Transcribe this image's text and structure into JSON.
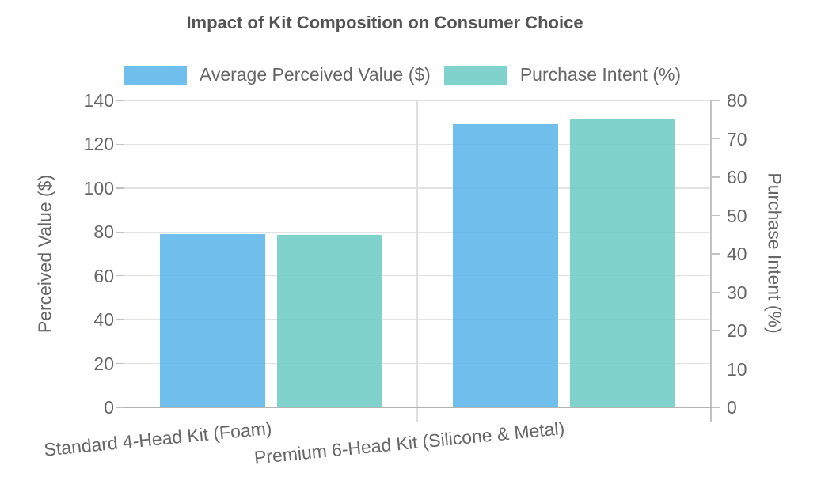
{
  "chart_data": {
    "type": "bar",
    "title": "Impact of Kit Composition on Consumer Choice",
    "categories": [
      "Standard 4-Head Kit (Foam)",
      "Premium 6-Head Kit (Silicone & Metal)"
    ],
    "series": [
      {
        "name": "Average Perceived Value ($)",
        "axis": "left",
        "color": "#56B3E9",
        "opacity": 0.85,
        "values": [
          79,
          129
        ]
      },
      {
        "name": "Purchase Intent (%)",
        "axis": "right",
        "color": "#6ACAC3",
        "opacity": 0.85,
        "values": [
          45,
          75
        ]
      }
    ],
    "left_axis": {
      "label": "Perceived Value ($)",
      "min": 0,
      "max": 140,
      "step": 20,
      "ticks": [
        0,
        20,
        40,
        60,
        80,
        100,
        120,
        140
      ]
    },
    "right_axis": {
      "label": "Purchase Intent (%)",
      "min": 0,
      "max": 80,
      "step": 10,
      "ticks": [
        0,
        10,
        20,
        30,
        40,
        50,
        60,
        70,
        80
      ]
    },
    "grid": true,
    "legend_position": "top",
    "colors": {
      "text": "#666666",
      "title": "#545454",
      "grid": "#e3e3e3",
      "axis_line": "#c2c2c2",
      "baseline": "#b3b3b3",
      "boundary": "#dedede"
    }
  }
}
